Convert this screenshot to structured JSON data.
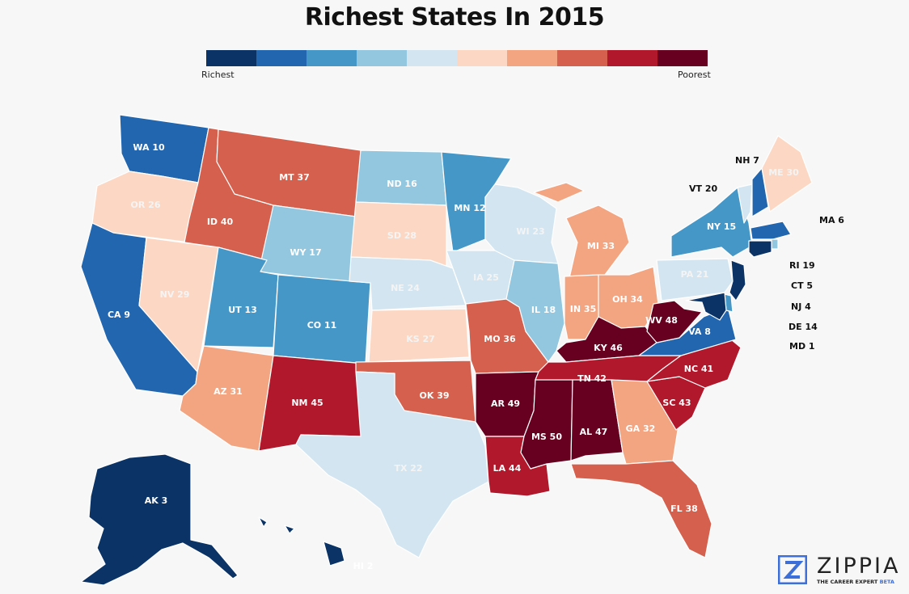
{
  "title": "Richest States In 2015",
  "legend": {
    "left_label": "Richest",
    "right_label": "Poorest",
    "colors": [
      "#0b3366",
      "#2266b0",
      "#4597c8",
      "#93c6df",
      "#d2e5f1",
      "#fcd8c4",
      "#f3a582",
      "#d6604e",
      "#b2182b",
      "#670020"
    ]
  },
  "states": [
    {
      "id": "WA",
      "label": "WA 10",
      "color": "#2266b0"
    },
    {
      "id": "OR",
      "label": "OR 26",
      "color": "#fcd8c4"
    },
    {
      "id": "CA",
      "label": "CA 9",
      "color": "#2266b0"
    },
    {
      "id": "NV",
      "label": "NV 29",
      "color": "#fcd8c4"
    },
    {
      "id": "ID",
      "label": "ID 40",
      "color": "#d6604e"
    },
    {
      "id": "MT",
      "label": "MT 37",
      "color": "#d6604e"
    },
    {
      "id": "WY",
      "label": "WY 17",
      "color": "#93c6df"
    },
    {
      "id": "UT",
      "label": "UT 13",
      "color": "#4597c8"
    },
    {
      "id": "CO",
      "label": "CO 11",
      "color": "#4597c8"
    },
    {
      "id": "AZ",
      "label": "AZ 31",
      "color": "#f3a582"
    },
    {
      "id": "NM",
      "label": "NM 45",
      "color": "#b2182b"
    },
    {
      "id": "ND",
      "label": "ND 16",
      "color": "#93c6df"
    },
    {
      "id": "SD",
      "label": "SD 28",
      "color": "#fcd8c4"
    },
    {
      "id": "NE",
      "label": "NE 24",
      "color": "#d2e5f1"
    },
    {
      "id": "KS",
      "label": "KS 27",
      "color": "#fcd8c4"
    },
    {
      "id": "OK",
      "label": "OK 39",
      "color": "#d6604e"
    },
    {
      "id": "TX",
      "label": "TX 22",
      "color": "#d2e5f1"
    },
    {
      "id": "MN",
      "label": "MN 12",
      "color": "#4597c8"
    },
    {
      "id": "IA",
      "label": "IA 25",
      "color": "#d2e5f1"
    },
    {
      "id": "MO",
      "label": "MO 36",
      "color": "#d6604e"
    },
    {
      "id": "AR",
      "label": "AR 49",
      "color": "#670020"
    },
    {
      "id": "LA",
      "label": "LA 44",
      "color": "#b2182b"
    },
    {
      "id": "WI",
      "label": "WI 23",
      "color": "#d2e5f1"
    },
    {
      "id": "IL",
      "label": "IL 18",
      "color": "#93c6df"
    },
    {
      "id": "MI",
      "label": "MI 33",
      "color": "#f3a582"
    },
    {
      "id": "IN",
      "label": "IN 35",
      "color": "#f3a582"
    },
    {
      "id": "OH",
      "label": "OH 34",
      "color": "#f3a582"
    },
    {
      "id": "KY",
      "label": "KY 46",
      "color": "#670020"
    },
    {
      "id": "TN",
      "label": "TN 42",
      "color": "#b2182b"
    },
    {
      "id": "MS",
      "label": "MS 50",
      "color": "#670020"
    },
    {
      "id": "AL",
      "label": "AL 47",
      "color": "#670020"
    },
    {
      "id": "GA",
      "label": "GA 32",
      "color": "#f3a582"
    },
    {
      "id": "FL",
      "label": "FL 38",
      "color": "#d6604e"
    },
    {
      "id": "SC",
      "label": "SC 43",
      "color": "#b2182b"
    },
    {
      "id": "NC",
      "label": "NC 41",
      "color": "#b2182b"
    },
    {
      "id": "VA",
      "label": "VA 8",
      "color": "#2266b0"
    },
    {
      "id": "WV",
      "label": "WV 48",
      "color": "#670020"
    },
    {
      "id": "PA",
      "label": "PA 21",
      "color": "#d2e5f1"
    },
    {
      "id": "NY",
      "label": "NY 15",
      "color": "#4597c8"
    },
    {
      "id": "VT",
      "label": "VT 20",
      "color": "#d2e5f1"
    },
    {
      "id": "NH",
      "label": "NH 7",
      "color": "#2266b0"
    },
    {
      "id": "ME",
      "label": "ME 30",
      "color": "#fcd8c4"
    },
    {
      "id": "MA",
      "label": "MA 6",
      "color": "#2266b0"
    },
    {
      "id": "RI",
      "label": "RI 19",
      "color": "#93c6df"
    },
    {
      "id": "CT",
      "label": "CT 5",
      "color": "#0b3366"
    },
    {
      "id": "NJ",
      "label": "NJ 4",
      "color": "#0b3366"
    },
    {
      "id": "DE",
      "label": "DE 14",
      "color": "#4597c8"
    },
    {
      "id": "MD",
      "label": "MD 1",
      "color": "#0b3366"
    },
    {
      "id": "AK",
      "label": "AK 3",
      "color": "#0b3366"
    },
    {
      "id": "HI",
      "label": "HI 2",
      "color": "#0b3366"
    }
  ],
  "brand": {
    "name": "ZIPPIA",
    "tagline": "THE CAREER EXPERT",
    "tag_suffix": "BETA",
    "logo_color": "#3d6fd8"
  }
}
